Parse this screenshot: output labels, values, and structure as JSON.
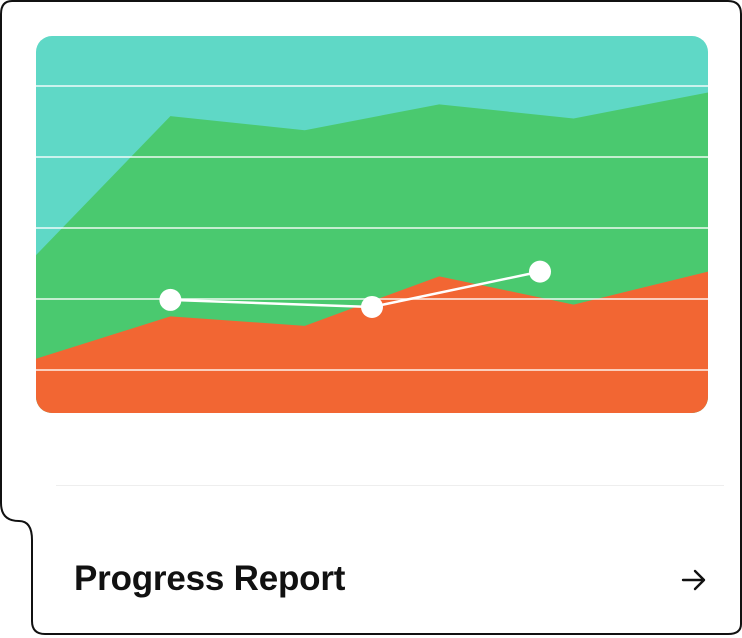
{
  "card": {
    "title": "Progress Report",
    "arrow_icon": "arrow-right-icon"
  },
  "chart_data": {
    "type": "area",
    "x": [
      0,
      1,
      2,
      3,
      4,
      5
    ],
    "series": [
      {
        "values": [
          3.35,
          6.3,
          6.0,
          6.55,
          6.25,
          6.8
        ],
        "color": "#4ac96f"
      },
      {
        "values": [
          1.15,
          2.05,
          1.85,
          2.9,
          2.3,
          3.0
        ],
        "color": "#f26633"
      }
    ],
    "overlay_line": {
      "x": [
        1,
        2.5,
        3.75
      ],
      "values": [
        2.4,
        2.25,
        3.0
      ],
      "color": "#ffffff"
    },
    "background_color": "#5fd8c6",
    "ylim": [
      0,
      8
    ],
    "grid": true,
    "title": "",
    "xlabel": "",
    "ylabel": ""
  }
}
